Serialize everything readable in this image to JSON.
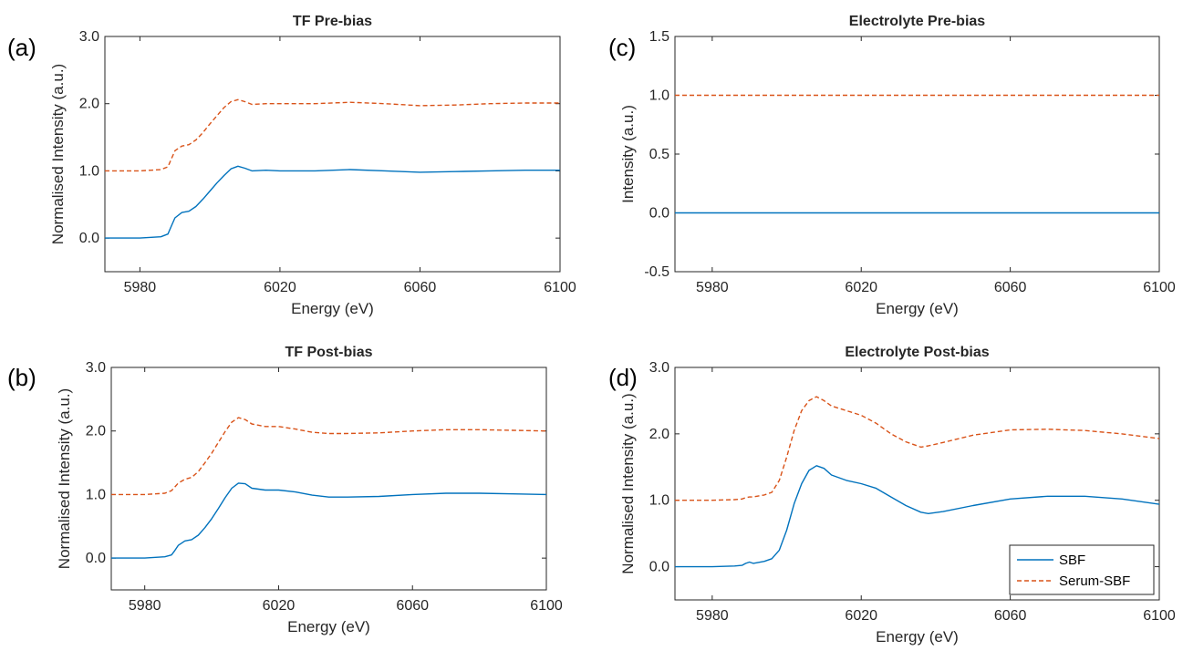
{
  "chart_data": [
    {
      "panel_label": "(a)",
      "type": "line",
      "title": "TF Pre-bias",
      "xlabel": "Energy (eV)",
      "ylabel": "Normalised Intensity (a.u.)",
      "xlim": [
        5970,
        6100
      ],
      "ylim": [
        -0.5,
        3.0
      ],
      "xticks": [
        5980,
        6020,
        6060,
        6100
      ],
      "xtick_labels": [
        "5980",
        "6020",
        "6060",
        "6100"
      ],
      "yticks": [
        0,
        1,
        2,
        3
      ],
      "ytick_labels": [
        "0.0",
        "1.0",
        "2.0",
        "3.0"
      ],
      "grid": false,
      "series": [
        {
          "name": "SBF",
          "color": "#0072BD",
          "style": "solid",
          "x": [
            5970,
            5980,
            5986,
            5988,
            5989,
            5990,
            5992,
            5994,
            5996,
            5998,
            6000,
            6002,
            6004,
            6006,
            6008,
            6010,
            6012,
            6016,
            6020,
            6030,
            6040,
            6050,
            6060,
            6070,
            6080,
            6090,
            6100
          ],
          "y": [
            0.0,
            0.0,
            0.02,
            0.06,
            0.18,
            0.3,
            0.38,
            0.4,
            0.47,
            0.58,
            0.7,
            0.82,
            0.93,
            1.03,
            1.07,
            1.04,
            1.0,
            1.01,
            1.0,
            1.0,
            1.02,
            1.0,
            0.98,
            0.99,
            1.0,
            1.01,
            1.01
          ]
        },
        {
          "name": "Serum-SBF",
          "color": "#D95319",
          "style": "dashed",
          "x": [
            5970,
            5980,
            5986,
            5988,
            5989,
            5990,
            5992,
            5994,
            5996,
            5998,
            6000,
            6002,
            6004,
            6006,
            6008,
            6010,
            6012,
            6016,
            6020,
            6030,
            6040,
            6050,
            6060,
            6070,
            6080,
            6090,
            6100
          ],
          "y": [
            1.0,
            1.0,
            1.02,
            1.06,
            1.18,
            1.3,
            1.37,
            1.39,
            1.46,
            1.57,
            1.7,
            1.82,
            1.94,
            2.03,
            2.06,
            2.03,
            1.99,
            2.0,
            2.0,
            2.0,
            2.02,
            2.0,
            1.97,
            1.98,
            2.0,
            2.01,
            2.01
          ]
        }
      ]
    },
    {
      "panel_label": "(b)",
      "type": "line",
      "title": "TF Post-bias",
      "xlabel": "Energy (eV)",
      "ylabel": "Normalised Intensity (a.u.)",
      "xlim": [
        5970,
        6100
      ],
      "ylim": [
        -0.5,
        3.0
      ],
      "xticks": [
        5980,
        6020,
        6060,
        6100
      ],
      "xtick_labels": [
        "5980",
        "6020",
        "6060",
        "6100"
      ],
      "yticks": [
        0,
        1,
        2,
        3
      ],
      "ytick_labels": [
        "0.0",
        "1.0",
        "2.0",
        "3.0"
      ],
      "grid": false,
      "series": [
        {
          "name": "SBF",
          "color": "#0072BD",
          "style": "solid",
          "x": [
            5970,
            5980,
            5986,
            5988,
            5989,
            5990,
            5992,
            5994,
            5996,
            5998,
            6000,
            6002,
            6004,
            6006,
            6008,
            6010,
            6012,
            6016,
            6020,
            6025,
            6030,
            6035,
            6040,
            6050,
            6060,
            6070,
            6080,
            6090,
            6100
          ],
          "y": [
            0.0,
            0.0,
            0.02,
            0.05,
            0.12,
            0.2,
            0.27,
            0.29,
            0.36,
            0.48,
            0.62,
            0.78,
            0.95,
            1.1,
            1.18,
            1.17,
            1.1,
            1.07,
            1.07,
            1.04,
            0.99,
            0.96,
            0.96,
            0.97,
            1.0,
            1.02,
            1.02,
            1.01,
            1.0
          ]
        },
        {
          "name": "Serum-SBF",
          "color": "#D95319",
          "style": "dashed",
          "x": [
            5970,
            5980,
            5986,
            5988,
            5989,
            5990,
            5992,
            5994,
            5996,
            5998,
            6000,
            6002,
            6004,
            6006,
            6008,
            6010,
            6012,
            6016,
            6020,
            6025,
            6030,
            6035,
            6040,
            6050,
            6060,
            6070,
            6080,
            6090,
            6100
          ],
          "y": [
            1.0,
            1.0,
            1.02,
            1.06,
            1.12,
            1.18,
            1.24,
            1.27,
            1.36,
            1.5,
            1.65,
            1.82,
            1.99,
            2.14,
            2.21,
            2.18,
            2.11,
            2.07,
            2.07,
            2.03,
            1.98,
            1.96,
            1.96,
            1.97,
            2.0,
            2.02,
            2.02,
            2.01,
            2.0
          ]
        }
      ]
    },
    {
      "panel_label": "(c)",
      "type": "line",
      "title": "Electrolyte Pre-bias",
      "xlabel": "Energy (eV)",
      "ylabel": "Intensity (a.u.)",
      "xlim": [
        5970,
        6100
      ],
      "ylim": [
        -0.5,
        1.5
      ],
      "xticks": [
        5980,
        6020,
        6060,
        6100
      ],
      "xtick_labels": [
        "5980",
        "6020",
        "6060",
        "6100"
      ],
      "yticks": [
        -0.5,
        0,
        0.5,
        1.0,
        1.5
      ],
      "ytick_labels": [
        "-0.5",
        "0.0",
        "0.5",
        "1.0",
        "1.5"
      ],
      "grid": false,
      "series": [
        {
          "name": "SBF",
          "color": "#0072BD",
          "style": "solid",
          "x": [
            5970,
            6100
          ],
          "y": [
            0.0,
            0.0
          ]
        },
        {
          "name": "Serum-SBF",
          "color": "#D95319",
          "style": "dashed",
          "x": [
            5970,
            6100
          ],
          "y": [
            1.0,
            1.0
          ]
        }
      ]
    },
    {
      "panel_label": "(d)",
      "type": "line",
      "title": "Electrolyte Post-bias",
      "xlabel": "Energy (eV)",
      "ylabel": "Normalised Intensity (a.u.)",
      "xlim": [
        5970,
        6100
      ],
      "ylim": [
        -0.5,
        3.0
      ],
      "xticks": [
        5980,
        6020,
        6060,
        6100
      ],
      "xtick_labels": [
        "5980",
        "6020",
        "6060",
        "6100"
      ],
      "yticks": [
        0,
        1,
        2,
        3
      ],
      "ytick_labels": [
        "0.0",
        "1.0",
        "2.0",
        "3.0"
      ],
      "grid": false,
      "legend": "bottom-right",
      "series": [
        {
          "name": "SBF",
          "color": "#0072BD",
          "style": "solid",
          "x": [
            5970,
            5980,
            5986,
            5988,
            5989,
            5990,
            5991,
            5992,
            5994,
            5996,
            5998,
            6000,
            6002,
            6004,
            6006,
            6008,
            6010,
            6012,
            6016,
            6020,
            6024,
            6028,
            6032,
            6036,
            6038,
            6042,
            6050,
            6060,
            6070,
            6080,
            6090,
            6100
          ],
          "y": [
            0.0,
            0.0,
            0.01,
            0.02,
            0.05,
            0.07,
            0.05,
            0.06,
            0.08,
            0.12,
            0.25,
            0.55,
            0.95,
            1.25,
            1.45,
            1.52,
            1.48,
            1.38,
            1.3,
            1.25,
            1.18,
            1.05,
            0.92,
            0.82,
            0.8,
            0.83,
            0.92,
            1.02,
            1.06,
            1.06,
            1.02,
            0.94
          ]
        },
        {
          "name": "Serum-SBF",
          "color": "#D95319",
          "style": "dashed",
          "x": [
            5970,
            5980,
            5986,
            5988,
            5989,
            5990,
            5991,
            5992,
            5994,
            5996,
            5998,
            6000,
            6002,
            6004,
            6006,
            6008,
            6010,
            6012,
            6016,
            6020,
            6024,
            6028,
            6032,
            6036,
            6038,
            6042,
            6050,
            6060,
            6070,
            6080,
            6090,
            6100
          ],
          "y": [
            1.0,
            1.0,
            1.01,
            1.02,
            1.04,
            1.05,
            1.05,
            1.06,
            1.08,
            1.12,
            1.3,
            1.65,
            2.05,
            2.35,
            2.5,
            2.56,
            2.5,
            2.42,
            2.35,
            2.28,
            2.16,
            2.0,
            1.88,
            1.8,
            1.82,
            1.87,
            1.98,
            2.06,
            2.07,
            2.05,
            2.0,
            1.93
          ]
        }
      ]
    }
  ],
  "legend": {
    "entries": [
      "SBF",
      "Serum-SBF"
    ]
  }
}
